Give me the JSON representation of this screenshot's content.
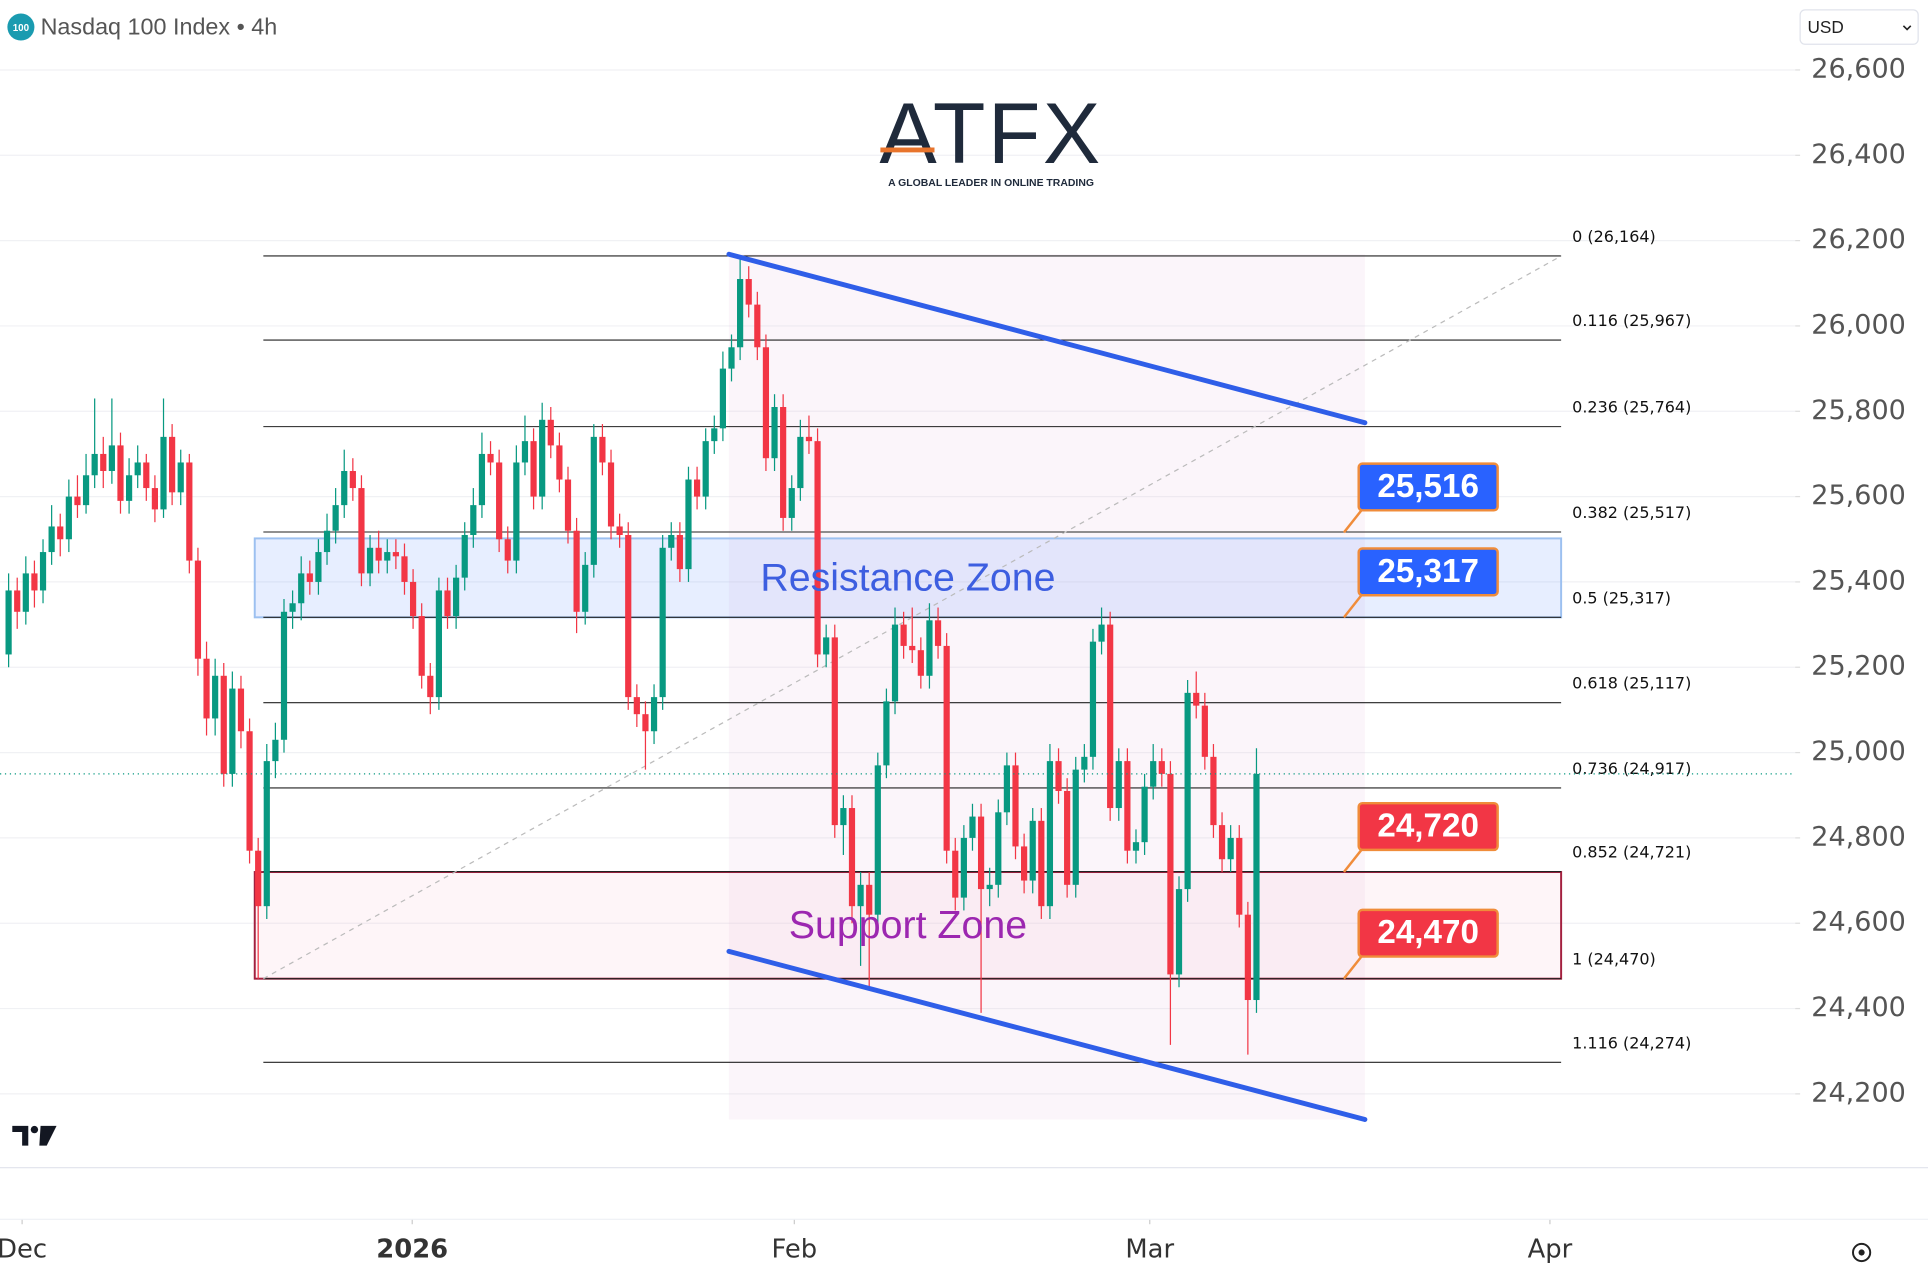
{
  "chart_data": {
    "type": "candlestick",
    "title": "Nasdaq 100 Index • 4h",
    "symbol_badge": "100",
    "currency": "USD",
    "logo": {
      "name": "ATFX",
      "tagline": "A GLOBAL LEADER IN ONLINE TRADING"
    },
    "up_color": "#089981",
    "down_color": "#f23645",
    "grid": true,
    "xlim": [
      -1,
      207.6
    ],
    "xticks": [
      {
        "value": 1.57,
        "label": "Dec"
      },
      {
        "value": 46.9,
        "label": "2026"
      },
      {
        "value": 91.3,
        "label": "Feb"
      },
      {
        "value": 132.6,
        "label": "Mar"
      },
      {
        "value": 179.1,
        "label": "Apr"
      }
    ],
    "xtick_bold": [
      false,
      true,
      false,
      false,
      false
    ],
    "ylim": [
      24027,
      26764
    ],
    "yticks": [
      {
        "value": 26600,
        "label": "26,600"
      },
      {
        "value": 26400,
        "label": "26,400"
      },
      {
        "value": 26200,
        "label": "26,200"
      },
      {
        "value": 26000,
        "label": "26,000"
      },
      {
        "value": 25800,
        "label": "25,800"
      },
      {
        "value": 25600,
        "label": "25,600"
      },
      {
        "value": 25400,
        "label": "25,400"
      },
      {
        "value": 25200,
        "label": "25,200"
      },
      {
        "value": 25000,
        "label": "25,000"
      },
      {
        "value": 24800,
        "label": "24,800"
      },
      {
        "value": 24600,
        "label": "24,600"
      },
      {
        "value": 24400,
        "label": "24,400"
      },
      {
        "value": 24200,
        "label": "24,200"
      }
    ],
    "candles": [
      [
        25230,
        25420,
        25200,
        25380
      ],
      [
        25380,
        25410,
        25290,
        25330
      ],
      [
        25330,
        25460,
        25300,
        25420
      ],
      [
        25420,
        25450,
        25340,
        25380
      ],
      [
        25380,
        25500,
        25350,
        25470
      ],
      [
        25470,
        25580,
        25440,
        25530
      ],
      [
        25530,
        25560,
        25460,
        25500
      ],
      [
        25500,
        25640,
        25470,
        25600
      ],
      [
        25600,
        25650,
        25550,
        25580
      ],
      [
        25580,
        25700,
        25560,
        25650
      ],
      [
        25650,
        25830,
        25620,
        25700
      ],
      [
        25700,
        25740,
        25620,
        25660
      ],
      [
        25660,
        25830,
        25630,
        25720
      ],
      [
        25720,
        25750,
        25560,
        25590
      ],
      [
        25590,
        25690,
        25560,
        25650
      ],
      [
        25650,
        25720,
        25620,
        25680
      ],
      [
        25680,
        25700,
        25590,
        25620
      ],
      [
        25620,
        25650,
        25540,
        25570
      ],
      [
        25570,
        25830,
        25550,
        25740
      ],
      [
        25740,
        25770,
        25580,
        25610
      ],
      [
        25610,
        25710,
        25580,
        25680
      ],
      [
        25680,
        25700,
        25420,
        25450
      ],
      [
        25450,
        25480,
        25180,
        25220
      ],
      [
        25220,
        25260,
        25040,
        25080
      ],
      [
        25080,
        25220,
        25040,
        25180
      ],
      [
        25180,
        25210,
        24920,
        24950
      ],
      [
        24950,
        25190,
        24920,
        25150
      ],
      [
        25150,
        25180,
        25010,
        25050
      ],
      [
        25050,
        25080,
        24740,
        24770
      ],
      [
        24770,
        24800,
        24470,
        24640
      ],
      [
        24640,
        25020,
        24610,
        24980
      ],
      [
        24980,
        25070,
        24940,
        25030
      ],
      [
        25030,
        25360,
        25000,
        25330
      ],
      [
        25330,
        25380,
        25290,
        25350
      ],
      [
        25350,
        25460,
        25310,
        25420
      ],
      [
        25420,
        25450,
        25370,
        25400
      ],
      [
        25400,
        25500,
        25370,
        25470
      ],
      [
        25470,
        25560,
        25440,
        25520
      ],
      [
        25520,
        25620,
        25490,
        25580
      ],
      [
        25580,
        25710,
        25550,
        25660
      ],
      [
        25660,
        25690,
        25590,
        25620
      ],
      [
        25620,
        25650,
        25390,
        25420
      ],
      [
        25420,
        25510,
        25390,
        25480
      ],
      [
        25480,
        25520,
        25420,
        25450
      ],
      [
        25450,
        25500,
        25420,
        25470
      ],
      [
        25470,
        25500,
        25430,
        25460
      ],
      [
        25460,
        25490,
        25370,
        25400
      ],
      [
        25400,
        25430,
        25290,
        25320
      ],
      [
        25320,
        25350,
        25150,
        25180
      ],
      [
        25180,
        25210,
        25090,
        25130
      ],
      [
        25130,
        25410,
        25100,
        25380
      ],
      [
        25380,
        25410,
        25290,
        25320
      ],
      [
        25320,
        25440,
        25290,
        25410
      ],
      [
        25410,
        25540,
        25380,
        25510
      ],
      [
        25510,
        25620,
        25480,
        25580
      ],
      [
        25580,
        25750,
        25550,
        25700
      ],
      [
        25700,
        25730,
        25650,
        25680
      ],
      [
        25680,
        25710,
        25470,
        25500
      ],
      [
        25500,
        25530,
        25420,
        25450
      ],
      [
        25450,
        25720,
        25420,
        25680
      ],
      [
        25680,
        25790,
        25650,
        25730
      ],
      [
        25730,
        25760,
        25570,
        25600
      ],
      [
        25600,
        25820,
        25570,
        25780
      ],
      [
        25780,
        25810,
        25690,
        25720
      ],
      [
        25720,
        25750,
        25610,
        25640
      ],
      [
        25640,
        25670,
        25490,
        25520
      ],
      [
        25520,
        25550,
        25280,
        25330
      ],
      [
        25330,
        25470,
        25300,
        25440
      ],
      [
        25440,
        25770,
        25410,
        25740
      ],
      [
        25740,
        25770,
        25650,
        25680
      ],
      [
        25680,
        25710,
        25500,
        25530
      ],
      [
        25530,
        25560,
        25480,
        25510
      ],
      [
        25510,
        25540,
        25100,
        25130
      ],
      [
        25130,
        25160,
        25060,
        25090
      ],
      [
        25090,
        25120,
        24960,
        25050
      ],
      [
        25050,
        25160,
        25020,
        25130
      ],
      [
        25130,
        25510,
        25100,
        25480
      ],
      [
        25480,
        25540,
        25450,
        25510
      ],
      [
        25510,
        25540,
        25400,
        25430
      ],
      [
        25430,
        25670,
        25400,
        25640
      ],
      [
        25640,
        25670,
        25570,
        25600
      ],
      [
        25600,
        25760,
        25570,
        25730
      ],
      [
        25730,
        25790,
        25700,
        25760
      ],
      [
        25760,
        25940,
        25730,
        25900
      ],
      [
        25900,
        25980,
        25870,
        25950
      ],
      [
        25950,
        26164,
        25920,
        26110
      ],
      [
        26110,
        26140,
        26020,
        26050
      ],
      [
        26050,
        26080,
        25920,
        25950
      ],
      [
        25950,
        25980,
        25660,
        25690
      ],
      [
        25690,
        25840,
        25660,
        25810
      ],
      [
        25810,
        25840,
        25520,
        25550
      ],
      [
        25550,
        25650,
        25520,
        25620
      ],
      [
        25620,
        25780,
        25590,
        25740
      ],
      [
        25740,
        25790,
        25700,
        25730
      ],
      [
        25730,
        25760,
        25200,
        25230
      ],
      [
        25230,
        25300,
        25200,
        25270
      ],
      [
        25270,
        25300,
        24800,
        24830
      ],
      [
        24830,
        24900,
        24760,
        24870
      ],
      [
        24870,
        24900,
        24600,
        24640
      ],
      [
        24640,
        24720,
        24500,
        24690
      ],
      [
        24690,
        24720,
        24450,
        24620
      ],
      [
        24620,
        25000,
        24590,
        24970
      ],
      [
        24970,
        25150,
        24940,
        25120
      ],
      [
        25120,
        25340,
        25090,
        25300
      ],
      [
        25300,
        25330,
        25220,
        25250
      ],
      [
        25250,
        25340,
        25210,
        25240
      ],
      [
        25240,
        25270,
        25150,
        25180
      ],
      [
        25180,
        25350,
        25150,
        25310
      ],
      [
        25310,
        25340,
        25220,
        25250
      ],
      [
        25250,
        25280,
        24740,
        24770
      ],
      [
        24770,
        24800,
        24630,
        24660
      ],
      [
        24660,
        24830,
        24630,
        24800
      ],
      [
        24800,
        24880,
        24770,
        24850
      ],
      [
        24850,
        24880,
        24390,
        24680
      ],
      [
        24680,
        24730,
        24640,
        24690
      ],
      [
        24690,
        24890,
        24660,
        24860
      ],
      [
        24860,
        25000,
        24830,
        24970
      ],
      [
        24970,
        25000,
        24750,
        24780
      ],
      [
        24780,
        24810,
        24670,
        24700
      ],
      [
        24700,
        24870,
        24670,
        24840
      ],
      [
        24840,
        24870,
        24610,
        24640
      ],
      [
        24640,
        25020,
        24610,
        24980
      ],
      [
        24980,
        25010,
        24880,
        24910
      ],
      [
        24910,
        24940,
        24660,
        24690
      ],
      [
        24690,
        24990,
        24660,
        24960
      ],
      [
        24960,
        25020,
        24930,
        24990
      ],
      [
        24990,
        25290,
        24960,
        25260
      ],
      [
        25260,
        25340,
        25230,
        25300
      ],
      [
        25300,
        25330,
        24840,
        24870
      ],
      [
        24870,
        25010,
        24840,
        24980
      ],
      [
        24980,
        25010,
        24740,
        24770
      ],
      [
        24770,
        24820,
        24740,
        24790
      ],
      [
        24790,
        24950,
        24760,
        24920
      ],
      [
        24920,
        25020,
        24890,
        24980
      ],
      [
        24980,
        25010,
        24920,
        24950
      ],
      [
        24950,
        24980,
        24315,
        24480
      ],
      [
        24480,
        24710,
        24450,
        24680
      ],
      [
        24680,
        25170,
        24650,
        25140
      ],
      [
        25140,
        25190,
        25080,
        25110
      ],
      [
        25110,
        25140,
        24960,
        24990
      ],
      [
        24990,
        25020,
        24800,
        24830
      ],
      [
        24830,
        24860,
        24720,
        24750
      ],
      [
        24750,
        24830,
        24720,
        24800
      ],
      [
        24800,
        24830,
        24590,
        24620
      ],
      [
        24620,
        24650,
        24292,
        24420
      ],
      [
        24420,
        25010,
        24390,
        24950
      ]
    ],
    "fib_x": [
      29.6,
      180.4
    ],
    "fib_levels": [
      {
        "value": 26164,
        "label": "0 (26,164)"
      },
      {
        "value": 25967,
        "label": "0.116 (25,967)"
      },
      {
        "value": 25764,
        "label": "0.236 (25,764)"
      },
      {
        "value": 25517,
        "label": "0.382 (25,517)"
      },
      {
        "value": 25317,
        "label": "0.5 (25,317)"
      },
      {
        "value": 25117,
        "label": "0.618 (25,117)"
      },
      {
        "value": 24917,
        "label": "0.736 (24,917)"
      },
      {
        "value": 24721,
        "label": "0.852 (24,721)"
      },
      {
        "value": 24470,
        "label": "1 (24,470)"
      },
      {
        "value": 24274,
        "label": "1.116 (24,274)"
      }
    ],
    "fib_trend": {
      "x": [
        29.6,
        180.4
      ],
      "values": [
        24470,
        26164
      ]
    },
    "zones": [
      {
        "name": "Resistance Zone",
        "range": [
          25317,
          25502
        ],
        "x": [
          28.6,
          180.4
        ],
        "fill": "rgba(120,160,255,0.18)",
        "stroke": "#9cc0f0",
        "text_color": "#3d5ee0"
      },
      {
        "name": "Support Zone",
        "range": [
          24470,
          24720
        ],
        "x": [
          28.6,
          180.4
        ],
        "fill": "rgba(245,190,210,0.15)",
        "stroke": "#a3203f",
        "text_color": "#9c27b0"
      }
    ],
    "channel": {
      "color": "#2f5ee8",
      "upper": {
        "x": [
          83.7,
          157.6
        ],
        "values": [
          26168,
          25773
        ]
      },
      "lower": {
        "x": [
          83.7,
          157.6
        ],
        "values": [
          24534,
          24140
        ]
      }
    },
    "callouts": {
      "values": [
        25516,
        25317,
        24720,
        24470
      ],
      "value_labels": [
        "25,516",
        "25,317",
        "24,720",
        "24,470"
      ],
      "colors": [
        "#2962ff",
        "#2962ff",
        "#f23645",
        "#f23645"
      ]
    }
  }
}
